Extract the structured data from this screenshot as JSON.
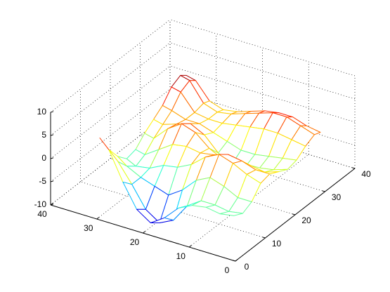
{
  "chart_data": {
    "type": "mesh",
    "x": [
      1,
      4,
      7,
      10,
      13,
      16,
      19,
      22,
      25,
      28,
      30
    ],
    "y": [
      1,
      4,
      7,
      10,
      13,
      16,
      19,
      22,
      25,
      28,
      30
    ],
    "z": [
      [
        -1,
        -2,
        -1,
        1.5,
        2,
        1,
        0,
        0.5,
        2,
        3,
        2.5
      ],
      [
        -1.5,
        -2.5,
        -1,
        2.5,
        2,
        0,
        -1,
        0,
        2.5,
        4,
        3
      ],
      [
        -1,
        -2,
        0.5,
        4,
        3,
        0.5,
        -1.5,
        -0.5,
        3,
        5,
        4
      ],
      [
        -1.5,
        -2,
        1.5,
        5,
        3.5,
        0,
        -2,
        -1,
        3,
        5,
        4
      ],
      [
        -3,
        -4,
        0,
        3.5,
        2.5,
        0,
        -2.5,
        -1,
        2.5,
        4,
        3.5
      ],
      [
        -6,
        -8,
        -3,
        1,
        2,
        1.5,
        -1,
        0,
        2,
        3,
        2.5
      ],
      [
        -8,
        -9.5,
        -5,
        -0.5,
        2.5,
        4,
        2,
        1,
        1.5,
        2,
        1.5
      ],
      [
        -6,
        -7.5,
        -4,
        -1,
        2,
        5,
        3.5,
        2,
        1.5,
        1.5,
        1
      ],
      [
        -1,
        -3,
        -3,
        -2.5,
        0,
        3,
        2.5,
        2,
        2,
        2.5,
        2
      ],
      [
        5,
        1,
        -1.5,
        -3,
        -2,
        0,
        1.5,
        3,
        5.5,
        6.5,
        5.5
      ],
      [
        7,
        3,
        0,
        -2,
        -1.5,
        0.5,
        2,
        3.5,
        6,
        7,
        6
      ]
    ],
    "xlim": [
      0,
      40
    ],
    "xticks": [
      0,
      10,
      20,
      30,
      40
    ],
    "ylim": [
      0,
      40
    ],
    "yticks": [
      0,
      10,
      20,
      30,
      40
    ],
    "zlim": [
      -10,
      10
    ],
    "zticks": [
      -10,
      -5,
      0,
      5,
      10
    ],
    "grid": true,
    "colormap": "jet"
  }
}
